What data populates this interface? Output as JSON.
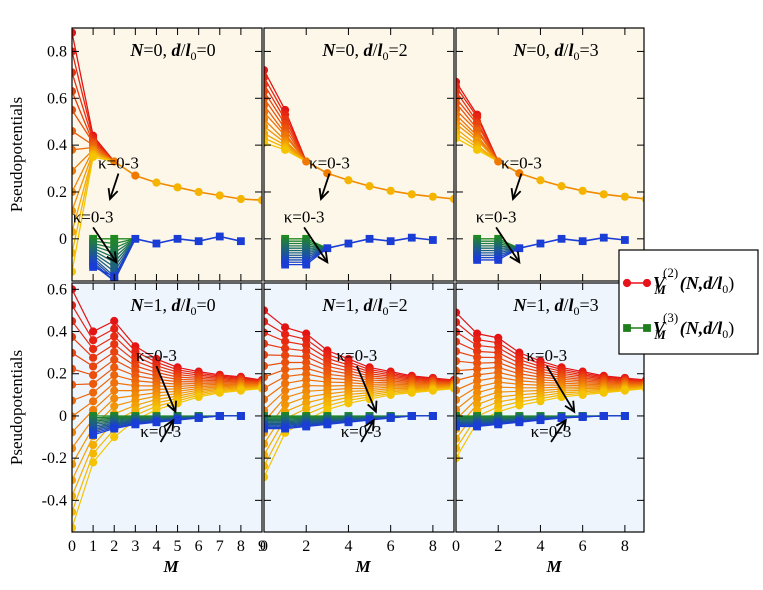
{
  "chart_data": {
    "type": "line",
    "ylabel": "Pseudopotentials",
    "xlabel": "M",
    "xlim": [
      0,
      9
    ],
    "rows": [
      {
        "ylim": [
          -0.18,
          0.9
        ],
        "yticks": [
          "0.8",
          "0.6",
          "0.4",
          "0.2",
          "0",
          "-0.2"
        ],
        "ytick_values": [
          0.8,
          0.6,
          0.4,
          0.2,
          0,
          -0.2
        ],
        "bg": "#fcf7e9"
      },
      {
        "ylim": [
          -0.55,
          0.63
        ],
        "yticks": [
          "0.6",
          "0.4",
          "0.2",
          "0",
          "-0.2",
          "-0.4"
        ],
        "ytick_values": [
          0.6,
          0.4,
          0.2,
          0,
          -0.2,
          -0.4
        ],
        "bg": "#eef5fc"
      }
    ],
    "xticks": [
      [
        "0",
        "1",
        "2",
        "3",
        "4",
        "5",
        "6",
        "7",
        "8",
        "9"
      ],
      [
        "0",
        "2",
        "4",
        "6",
        "8"
      ],
      [
        "0",
        "2",
        "4",
        "6",
        "8"
      ]
    ],
    "xtick_values": [
      [
        0,
        1,
        2,
        3,
        4,
        5,
        6,
        7,
        8,
        9
      ],
      [
        0,
        2,
        4,
        6,
        8
      ],
      [
        0,
        2,
        4,
        6,
        8
      ]
    ],
    "legend": {
      "placement": "right",
      "entries": [
        {
          "prefix": "V",
          "sub": "M",
          "sup": "(2)",
          "args": "(N,d/l",
          "args_sub": "0",
          "close": ")",
          "color": "#e8141b",
          "marker": "circle"
        },
        {
          "prefix": "V",
          "sub": "M",
          "sup": "(3)",
          "args": "(N,d/l",
          "args_sub": "0",
          "close": ")",
          "color": "#1f7f1f",
          "marker": "square"
        }
      ]
    },
    "panels": [
      {
        "row": 0,
        "col": 0,
        "title": {
          "N": "0",
          "d": "0"
        },
        "annotations": [
          {
            "text": "κ=0-3",
            "x": 2.2,
            "y": 0.3,
            "ax": 1.8,
            "ay": 0.17
          },
          {
            "text": "κ=0-3",
            "x": 1.0,
            "y": 0.07,
            "ax": 2.1,
            "ay": -0.1
          }
        ],
        "v2_first": {
          "start": [
            0.88,
            0.8,
            0.71,
            0.63,
            0.55,
            0.46,
            0.38,
            0.29,
            0.2,
            0.12,
            0.03,
            -0.06,
            -0.14
          ],
          "end": [
            0.44,
            0.43,
            0.42,
            0.41,
            0.41,
            0.4,
            0.39,
            0.38,
            0.38,
            0.37,
            0.36,
            0.36,
            0.35
          ]
        },
        "v2_tail": [
          null,
          null,
          0.33,
          0.27,
          0.24,
          0.22,
          0.2,
          0.185,
          0.17,
          0.165
        ],
        "v3_first": {
          "start": [
            0,
            -0.01,
            -0.02,
            -0.03,
            -0.04,
            -0.05,
            -0.06,
            -0.07,
            -0.08,
            -0.09,
            -0.1,
            -0.11,
            -0.12
          ],
          "end": [
            0,
            -0.02,
            -0.04,
            -0.06,
            -0.08,
            -0.1,
            -0.12,
            -0.14,
            -0.16,
            -0.17,
            -0.18,
            -0.18,
            -0.16
          ]
        },
        "v3_tail": [
          null,
          null,
          null,
          0.0,
          -0.02,
          0.0,
          -0.01,
          0.01,
          -0.01
        ]
      },
      {
        "row": 0,
        "col": 1,
        "title": {
          "N": "0",
          "d": "2"
        },
        "annotations": [
          {
            "text": "κ=0-3",
            "x": 3.1,
            "y": 0.3,
            "ax": 2.7,
            "ay": 0.17
          },
          {
            "text": "κ=0-3",
            "x": 1.9,
            "y": 0.07,
            "ax": 3.0,
            "ay": -0.1
          }
        ],
        "v2_first": {
          "start": [
            0.72,
            0.69,
            0.66,
            0.63,
            0.6,
            0.57,
            0.54,
            0.51,
            0.48,
            0.45,
            0.43,
            0.41
          ],
          "end": [
            0.55,
            0.53,
            0.51,
            0.49,
            0.47,
            0.45,
            0.44,
            0.42,
            0.41,
            0.4,
            0.39,
            0.38
          ]
        },
        "v2_tail": [
          null,
          null,
          0.33,
          0.28,
          0.25,
          0.225,
          0.205,
          0.19,
          0.18,
          0.17
        ],
        "v3_first": {
          "start": [
            0,
            -0.01,
            -0.02,
            -0.03,
            -0.04,
            -0.05,
            -0.06,
            -0.07,
            -0.08,
            -0.09,
            -0.1,
            -0.11
          ],
          "end": [
            0,
            -0.01,
            -0.02,
            -0.03,
            -0.04,
            -0.05,
            -0.06,
            -0.07,
            -0.08,
            -0.09,
            -0.1,
            -0.11
          ]
        },
        "v3_tail": [
          null,
          null,
          null,
          -0.04,
          -0.02,
          0.0,
          -0.01,
          0.005,
          -0.005
        ]
      },
      {
        "row": 0,
        "col": 2,
        "title": {
          "N": "0",
          "d": "3"
        },
        "annotations": [
          {
            "text": "κ=0-3",
            "x": 3.1,
            "y": 0.3,
            "ax": 2.7,
            "ay": 0.17
          },
          {
            "text": "κ=0-3",
            "x": 1.9,
            "y": 0.07,
            "ax": 3.0,
            "ay": -0.1
          }
        ],
        "v2_first": {
          "start": [
            0.67,
            0.65,
            0.63,
            0.6,
            0.58,
            0.55,
            0.53,
            0.51,
            0.49,
            0.47,
            0.45,
            0.43
          ],
          "end": [
            0.53,
            0.52,
            0.5,
            0.49,
            0.47,
            0.46,
            0.44,
            0.43,
            0.42,
            0.4,
            0.39,
            0.38
          ]
        },
        "v2_tail": [
          null,
          null,
          0.33,
          0.28,
          0.25,
          0.225,
          0.205,
          0.19,
          0.18,
          0.17
        ],
        "v3_first": {
          "start": [
            0,
            -0.01,
            -0.02,
            -0.03,
            -0.04,
            -0.05,
            -0.06,
            -0.07,
            -0.08,
            -0.09
          ],
          "end": [
            0,
            -0.01,
            -0.02,
            -0.03,
            -0.04,
            -0.05,
            -0.06,
            -0.07,
            -0.08,
            -0.09
          ]
        },
        "v3_tail": [
          null,
          null,
          null,
          -0.04,
          -0.02,
          0.0,
          -0.01,
          0.005,
          -0.005
        ]
      },
      {
        "row": 1,
        "col": 0,
        "title": {
          "N": "1",
          "d": "0"
        },
        "annotations": [
          {
            "text": "κ=0-3",
            "x": 4.0,
            "y": 0.26,
            "ax": 4.9,
            "ay": 0.02
          },
          {
            "text": "κ=0-3",
            "x": 4.2,
            "y": -0.1,
            "ax": 4.8,
            "ay": -0.02
          }
        ],
        "v2": {
          "x": [
            0,
            1,
            2,
            3,
            4,
            5,
            6,
            7,
            8,
            9
          ],
          "start": [
            0.6,
            0.4,
            0.45,
            0.33,
            0.27,
            0.23,
            0.21,
            0.195,
            0.185,
            0.17
          ],
          "end": [
            -0.53,
            -0.22,
            -0.1,
            -0.02,
            0.03,
            0.06,
            0.09,
            0.11,
            0.12,
            0.13
          ],
          "n": 16
        },
        "v3": {
          "x": [
            1,
            2,
            3,
            4,
            5,
            6,
            7,
            8
          ],
          "start": [
            0.0,
            0.0,
            0.0,
            0.0,
            0.0,
            0.0,
            0.0,
            0.0
          ],
          "end": [
            -0.09,
            -0.06,
            -0.04,
            -0.03,
            -0.02,
            -0.01,
            0.0,
            0.0
          ],
          "n": 12
        }
      },
      {
        "row": 1,
        "col": 1,
        "title": {
          "N": "1",
          "d": "2"
        },
        "annotations": [
          {
            "text": "κ=0-3",
            "x": 4.4,
            "y": 0.26,
            "ax": 5.3,
            "ay": 0.02
          },
          {
            "text": "κ=0-3",
            "x": 4.6,
            "y": -0.1,
            "ax": 5.2,
            "ay": -0.02
          }
        ],
        "v2": {
          "x": [
            0,
            1,
            2,
            3,
            4,
            5,
            6,
            7,
            8,
            9
          ],
          "start": [
            0.5,
            0.42,
            0.39,
            0.31,
            0.27,
            0.23,
            0.21,
            0.19,
            0.18,
            0.17
          ],
          "end": [
            -0.29,
            -0.08,
            -0.02,
            0.03,
            0.06,
            0.08,
            0.1,
            0.11,
            0.12,
            0.13
          ],
          "n": 16
        },
        "v3": {
          "x": [
            0,
            1,
            2,
            3,
            4,
            5,
            6,
            7,
            8
          ],
          "start": [
            0.0,
            0.0,
            0.0,
            0.0,
            0.0,
            0.0,
            0.0,
            0.0,
            0.0
          ],
          "end": [
            -0.06,
            -0.06,
            -0.05,
            -0.04,
            -0.03,
            -0.02,
            -0.01,
            0.0,
            0.0
          ],
          "n": 12
        }
      },
      {
        "row": 1,
        "col": 2,
        "title": {
          "N": "1",
          "d": "3"
        },
        "annotations": [
          {
            "text": "κ=0-3",
            "x": 4.3,
            "y": 0.26,
            "ax": 5.6,
            "ay": 0.02
          },
          {
            "text": "κ=0-3",
            "x": 4.5,
            "y": -0.1,
            "ax": 5.2,
            "ay": -0.02
          }
        ],
        "v2": {
          "x": [
            0,
            1,
            2,
            3,
            4,
            5,
            6,
            7,
            8,
            9
          ],
          "start": [
            0.49,
            0.39,
            0.37,
            0.3,
            0.26,
            0.23,
            0.21,
            0.19,
            0.18,
            0.17
          ],
          "end": [
            -0.2,
            -0.03,
            0.02,
            0.05,
            0.07,
            0.09,
            0.1,
            0.11,
            0.12,
            0.13
          ],
          "n": 16
        },
        "v3": {
          "x": [
            0,
            1,
            2,
            3,
            4,
            5,
            6,
            7,
            8
          ],
          "start": [
            0.0,
            0.0,
            0.0,
            0.0,
            0.0,
            0.0,
            0.0,
            0.0,
            0.0
          ],
          "end": [
            -0.05,
            -0.05,
            -0.04,
            -0.03,
            -0.02,
            -0.01,
            -0.005,
            0.0,
            0.0
          ],
          "n": 12
        }
      }
    ]
  }
}
